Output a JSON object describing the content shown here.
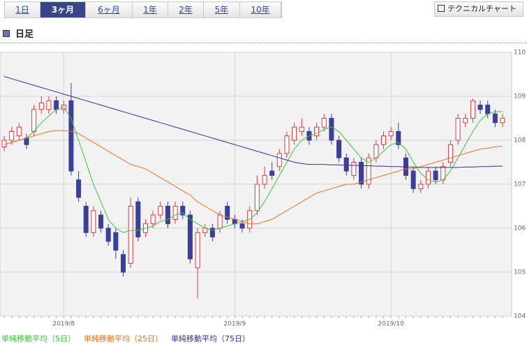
{
  "tabs": [
    "1日",
    "3ヶ月",
    "6ヶ月",
    "1年",
    "2年",
    "5年",
    "10年"
  ],
  "active_tab": 1,
  "button": "テクニカルチャート",
  "section_title": "日足",
  "chart_data": {
    "type": "candlestick",
    "categories": [
      null,
      null,
      null,
      null,
      null,
      null,
      null,
      null,
      "2019/8",
      null,
      null,
      null,
      null,
      null,
      null,
      null,
      null,
      null,
      null,
      null,
      null,
      null,
      null,
      null,
      null,
      null,
      null,
      null,
      null,
      null,
      null,
      "2019/9",
      null,
      null,
      null,
      null,
      null,
      null,
      null,
      null,
      null,
      null,
      null,
      null,
      null,
      null,
      null,
      null,
      null,
      null,
      null,
      null,
      "2019/10",
      null,
      null,
      null,
      null,
      null,
      null,
      null,
      null,
      null,
      null,
      null,
      null,
      null,
      null,
      null
    ],
    "open": [
      107.85,
      108.0,
      108.1,
      108.05,
      108.2,
      108.7,
      108.7,
      108.9,
      108.7,
      108.9,
      107.1,
      106.5,
      105.9,
      106.3,
      106.0,
      105.9,
      105.4,
      105.2,
      106.6,
      105.9,
      106.1,
      106.3,
      106.5,
      106.2,
      106.5,
      106.3,
      105.1,
      105.9,
      106.0,
      106.0,
      106.5,
      106.2,
      106.1,
      106.0,
      106.4,
      107.0,
      107.3,
      107.4,
      107.7,
      108.0,
      108.2,
      108.2,
      108.1,
      108.3,
      108.5,
      108.0,
      107.6,
      107.2,
      107.5,
      107.0,
      107.6,
      107.9,
      108.1,
      108.2,
      107.6,
      107.3,
      106.9,
      107.0,
      107.3,
      107.1,
      107.5,
      108.0,
      108.4,
      108.5,
      108.8,
      108.8,
      108.6,
      108.4
    ],
    "high": [
      108.1,
      108.3,
      108.4,
      108.15,
      108.8,
      109.0,
      109.0,
      109.0,
      108.9,
      109.3,
      107.3,
      106.6,
      106.5,
      106.4,
      106.1,
      106.0,
      105.5,
      106.7,
      106.7,
      106.2,
      106.4,
      106.6,
      106.6,
      106.6,
      106.6,
      106.4,
      106.0,
      106.1,
      106.1,
      106.4,
      106.6,
      106.3,
      106.2,
      106.5,
      107.2,
      107.4,
      107.5,
      107.8,
      108.2,
      108.4,
      108.5,
      108.3,
      108.4,
      108.6,
      108.6,
      108.1,
      107.7,
      107.6,
      107.6,
      107.7,
      108.0,
      108.2,
      108.3,
      108.4,
      107.7,
      107.4,
      107.1,
      107.4,
      107.4,
      107.5,
      108.0,
      108.6,
      108.6,
      108.95,
      108.9,
      108.9,
      108.7,
      108.6
    ],
    "low": [
      107.75,
      107.9,
      108.0,
      107.8,
      108.1,
      108.6,
      108.6,
      108.6,
      108.6,
      107.2,
      106.6,
      105.8,
      105.8,
      105.9,
      105.6,
      105.3,
      104.9,
      105.1,
      105.7,
      105.8,
      106.0,
      106.2,
      106.0,
      106.1,
      106.2,
      105.2,
      104.4,
      105.8,
      105.7,
      105.9,
      106.1,
      106.0,
      105.9,
      105.9,
      106.3,
      106.9,
      107.1,
      107.3,
      107.6,
      107.9,
      108.1,
      107.9,
      108.0,
      108.2,
      107.9,
      107.5,
      107.2,
      107.1,
      106.9,
      106.9,
      107.5,
      107.8,
      108.0,
      107.8,
      107.1,
      106.8,
      106.8,
      106.9,
      107.0,
      107.0,
      107.4,
      107.9,
      108.3,
      108.4,
      108.6,
      108.5,
      108.3,
      108.3
    ],
    "close": [
      108.0,
      108.2,
      108.3,
      107.9,
      108.7,
      108.85,
      108.9,
      108.7,
      108.8,
      107.3,
      106.7,
      105.9,
      106.4,
      106.0,
      105.7,
      105.5,
      105.0,
      106.5,
      105.8,
      106.1,
      106.3,
      106.5,
      106.1,
      106.5,
      106.3,
      105.3,
      105.9,
      106.0,
      105.8,
      106.3,
      106.2,
      106.1,
      106.0,
      106.4,
      107.0,
      107.2,
      107.2,
      107.7,
      108.1,
      108.3,
      108.3,
      108.0,
      108.3,
      108.5,
      108.0,
      107.6,
      107.3,
      107.5,
      107.0,
      107.6,
      107.9,
      108.1,
      108.2,
      107.9,
      107.2,
      106.9,
      107.0,
      107.3,
      107.1,
      107.4,
      107.9,
      108.5,
      108.5,
      108.9,
      108.7,
      108.6,
      108.4,
      108.5
    ],
    "up_color": "#e0393e",
    "down_color": "#3b3f98",
    "series": [
      {
        "name": "単純移動平均（5日）",
        "color": "#3cc43c",
        "values": [
          107.9,
          107.95,
          108.0,
          108.05,
          108.2,
          108.4,
          108.55,
          108.7,
          108.75,
          108.5,
          108.0,
          107.5,
          107.0,
          106.6,
          106.2,
          106.0,
          105.9,
          105.95,
          105.95,
          106.0,
          106.05,
          106.15,
          106.2,
          106.3,
          106.35,
          106.2,
          106.1,
          106.0,
          105.95,
          106.0,
          106.05,
          106.1,
          106.15,
          106.2,
          106.35,
          106.6,
          106.9,
          107.2,
          107.5,
          107.8,
          108.0,
          108.1,
          108.15,
          108.25,
          108.3,
          108.2,
          108.0,
          107.8,
          107.6,
          107.5,
          107.6,
          107.75,
          107.9,
          107.95,
          107.8,
          107.5,
          107.25,
          107.1,
          107.05,
          107.1,
          107.3,
          107.6,
          107.9,
          108.2,
          108.45,
          108.6,
          108.65,
          108.65
        ]
      },
      {
        "name": "単純移動平均（25日）",
        "color": "#e8721c",
        "values": [
          107.9,
          107.95,
          108.0,
          108.05,
          108.1,
          108.15,
          108.2,
          108.22,
          108.22,
          108.2,
          108.15,
          108.05,
          107.95,
          107.85,
          107.75,
          107.65,
          107.55,
          107.45,
          107.4,
          107.35,
          107.25,
          107.15,
          107.05,
          106.95,
          106.85,
          106.75,
          106.6,
          106.5,
          106.4,
          106.3,
          106.25,
          106.2,
          106.15,
          106.1,
          106.1,
          106.15,
          106.2,
          106.3,
          106.4,
          106.5,
          106.6,
          106.7,
          106.8,
          106.85,
          106.9,
          106.95,
          107.0,
          107.0,
          107.05,
          107.1,
          107.15,
          107.2,
          107.25,
          107.3,
          107.35,
          107.35,
          107.4,
          107.45,
          107.5,
          107.55,
          107.6,
          107.65,
          107.7,
          107.75,
          107.8,
          107.82,
          107.85,
          107.87
        ]
      },
      {
        "name": "単純移動平均（75日）",
        "color": "#3a2a9a",
        "values": [
          109.45,
          109.4,
          109.35,
          109.3,
          109.25,
          109.2,
          109.15,
          109.1,
          109.05,
          109.0,
          108.95,
          108.9,
          108.85,
          108.8,
          108.75,
          108.7,
          108.65,
          108.6,
          108.55,
          108.5,
          108.45,
          108.4,
          108.35,
          108.3,
          108.25,
          108.2,
          108.15,
          108.1,
          108.05,
          108.0,
          107.95,
          107.9,
          107.85,
          107.8,
          107.75,
          107.7,
          107.65,
          107.6,
          107.55,
          107.5,
          107.47,
          107.45,
          107.45,
          107.45,
          107.44,
          107.44,
          107.43,
          107.43,
          107.42,
          107.42,
          107.41,
          107.41,
          107.4,
          107.4,
          107.39,
          107.39,
          107.38,
          107.38,
          107.38,
          107.38,
          107.38,
          107.38,
          107.39,
          107.39,
          107.4,
          107.4,
          107.41,
          107.41
        ]
      }
    ],
    "ylim": [
      104,
      110
    ],
    "yticks": [
      104,
      105,
      106,
      107,
      108,
      109,
      110
    ],
    "grid": true
  }
}
